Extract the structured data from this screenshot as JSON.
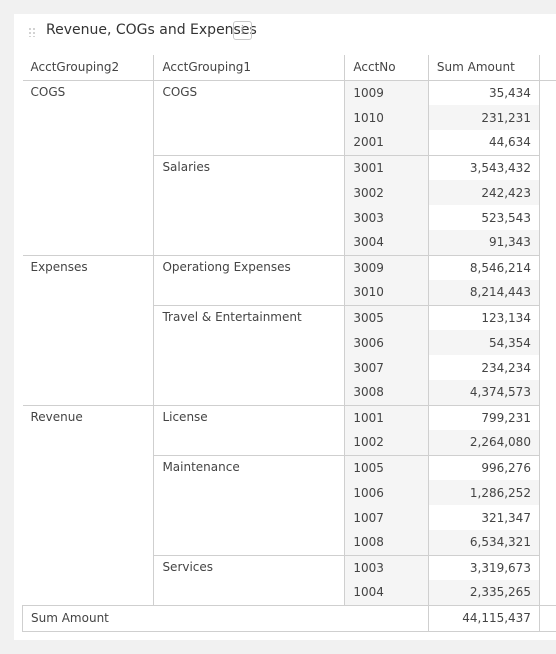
{
  "widget": {
    "title": "Revenue, COGs and Expenses",
    "info_label": "i"
  },
  "table": {
    "headers": [
      "AcctGrouping2",
      "AcctGrouping1",
      "AcctNo",
      "Sum Amount"
    ],
    "groups": [
      {
        "name": "COGS",
        "subgroups": [
          {
            "name": "COGS",
            "rows": [
              [
                "1009",
                "35,434"
              ],
              [
                "1010",
                "231,231"
              ],
              [
                "2001",
                "44,634"
              ]
            ]
          },
          {
            "name": "Salaries",
            "rows": [
              [
                "3001",
                "3,543,432"
              ],
              [
                "3002",
                "242,423"
              ],
              [
                "3003",
                "523,543"
              ],
              [
                "3004",
                "91,343"
              ]
            ]
          }
        ]
      },
      {
        "name": "Expenses",
        "subgroups": [
          {
            "name": "Operationg Expenses",
            "rows": [
              [
                "3009",
                "8,546,214"
              ],
              [
                "3010",
                "8,214,443"
              ]
            ]
          },
          {
            "name": "Travel & Entertainment",
            "rows": [
              [
                "3005",
                "123,134"
              ],
              [
                "3006",
                "54,354"
              ],
              [
                "3007",
                "234,234"
              ],
              [
                "3008",
                "4,374,573"
              ]
            ]
          }
        ]
      },
      {
        "name": "Revenue",
        "subgroups": [
          {
            "name": "License",
            "rows": [
              [
                "1001",
                "799,231"
              ],
              [
                "1002",
                "2,264,080"
              ]
            ]
          },
          {
            "name": "Maintenance",
            "rows": [
              [
                "1005",
                "996,276"
              ],
              [
                "1006",
                "1,286,252"
              ],
              [
                "1007",
                "321,347"
              ],
              [
                "1008",
                "6,534,321"
              ]
            ]
          },
          {
            "name": "Services",
            "rows": [
              [
                "1003",
                "3,319,673"
              ],
              [
                "1004",
                "2,335,265"
              ]
            ]
          }
        ]
      }
    ],
    "total_label": "Sum Amount",
    "total_value": "44,115,437"
  }
}
